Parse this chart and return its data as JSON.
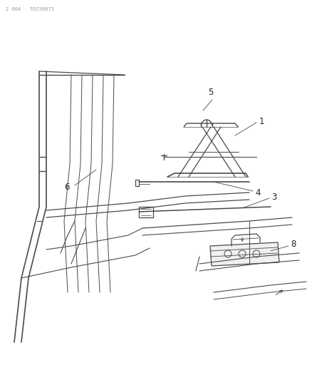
{
  "background_color": "#ffffff",
  "line_color": "#4a4a4a",
  "text_color": "#222222",
  "fig_width": 4.39,
  "fig_height": 5.33,
  "dpi": 100,
  "header": "2 004   55256073"
}
